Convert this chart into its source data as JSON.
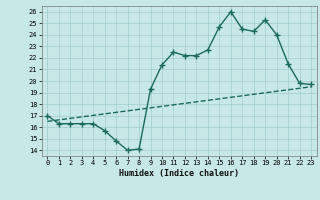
{
  "xlabel": "Humidex (Indice chaleur)",
  "ylabel": "",
  "bg_color": "#c8e8e8",
  "line_color": "#1a6b5a",
  "xlim": [
    -0.5,
    23.5
  ],
  "ylim": [
    13.5,
    26.5
  ],
  "yticks": [
    14,
    15,
    16,
    17,
    18,
    19,
    20,
    21,
    22,
    23,
    24,
    25,
    26
  ],
  "xticks": [
    0,
    1,
    2,
    3,
    4,
    5,
    6,
    7,
    8,
    9,
    10,
    11,
    12,
    13,
    14,
    15,
    16,
    17,
    18,
    19,
    20,
    21,
    22,
    23
  ],
  "series1_x": [
    0,
    1,
    2,
    3,
    4,
    5,
    6,
    7,
    8,
    9,
    10,
    11,
    12,
    13,
    14,
    15,
    16,
    17,
    18,
    19,
    20,
    21,
    22,
    23
  ],
  "series1_y": [
    17.0,
    16.3,
    16.3,
    16.3,
    16.3,
    15.7,
    14.8,
    14.0,
    14.1,
    19.3,
    21.4,
    22.5,
    22.2,
    22.2,
    22.7,
    24.7,
    26.0,
    24.5,
    24.3,
    25.3,
    24.0,
    21.5,
    19.8,
    19.7
  ],
  "series2_x": [
    0,
    23
  ],
  "series2_y": [
    16.5,
    19.5
  ],
  "grid_color": "#a0cccc",
  "marker_size": 3,
  "linewidth": 1.0
}
